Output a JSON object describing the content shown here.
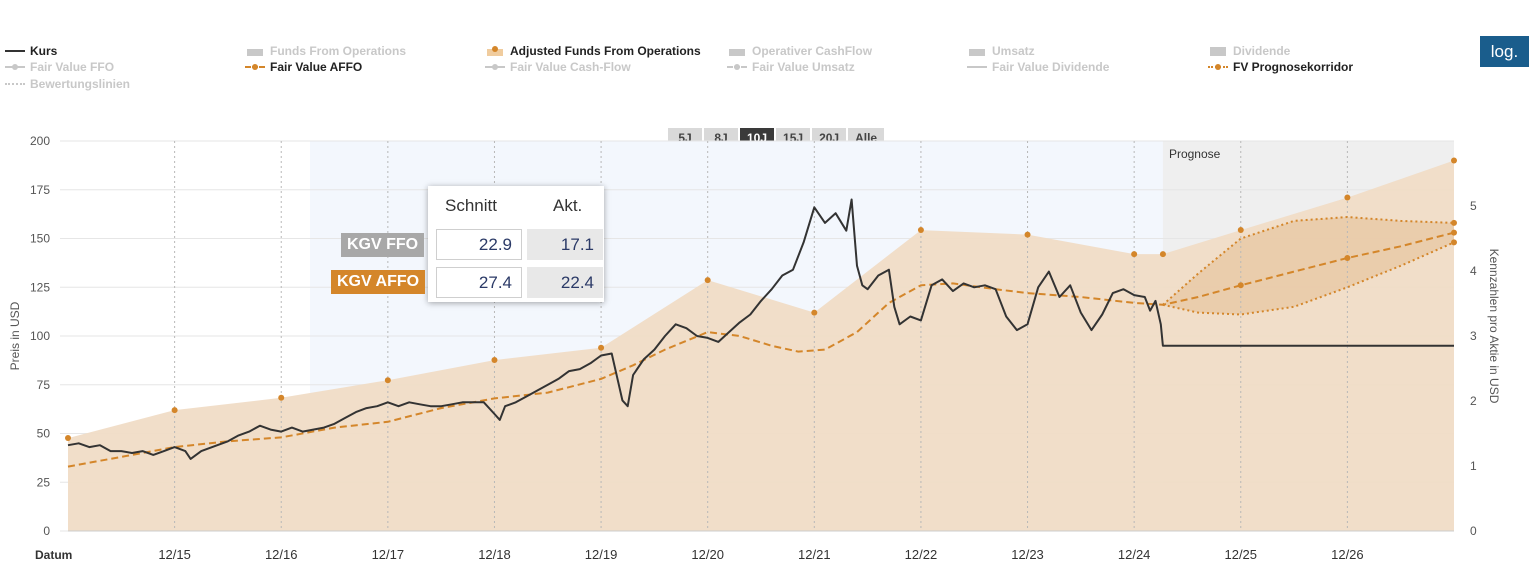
{
  "legend": [
    {
      "label": "Kurs",
      "active": true,
      "style": "line",
      "color": "#333333"
    },
    {
      "label": "Funds From Operations",
      "active": false,
      "style": "bars",
      "color": "#c8c8c8"
    },
    {
      "label": "Adjusted Funds From Operations",
      "active": true,
      "style": "bars-dots",
      "color": "#f0cc9e"
    },
    {
      "label": "Operativer CashFlow",
      "active": false,
      "style": "bars",
      "color": "#c8c8c8"
    },
    {
      "label": "Umsatz",
      "active": false,
      "style": "bars",
      "color": "#c8c8c8"
    },
    {
      "label": "Dividende",
      "active": false,
      "style": "block",
      "color": "#c8c8c8"
    },
    {
      "label": "Fair Value FFO",
      "active": false,
      "style": "line-dot",
      "color": "#c8c8c8"
    },
    {
      "label": "Fair Value AFFO",
      "active": true,
      "style": "dash-dot",
      "color": "#d4862a"
    },
    {
      "label": "Fair Value Cash-Flow",
      "active": false,
      "style": "line-dot",
      "color": "#c8c8c8"
    },
    {
      "label": "Fair Value Umsatz",
      "active": false,
      "style": "dash-dot",
      "color": "#c8c8c8"
    },
    {
      "label": "Fair Value Dividende",
      "active": false,
      "style": "line",
      "color": "#c8c8c8"
    },
    {
      "label": "FV Prognosekorridor",
      "active": true,
      "style": "dots-dot",
      "color": "#d4862a"
    },
    {
      "label": "Bewertungslinien",
      "active": false,
      "style": "dots",
      "color": "#c8c8c8"
    }
  ],
  "log_button": "log.",
  "range_buttons": [
    {
      "label": "5J",
      "active": false
    },
    {
      "label": "8J",
      "active": false
    },
    {
      "label": "10J",
      "active": true
    },
    {
      "label": "15J",
      "active": false
    },
    {
      "label": "20J",
      "active": false
    },
    {
      "label": "Alle",
      "active": false
    }
  ],
  "kgv": {
    "col_avg": "Schnitt",
    "col_cur": "Akt.",
    "rows": [
      {
        "label": "KGV FFO",
        "avg": "22.9",
        "cur": "17.1",
        "color": "#a8a8a8"
      },
      {
        "label": "KGV AFFO",
        "avg": "27.4",
        "cur": "22.4",
        "color": "#d4862a"
      }
    ]
  },
  "chart_data": {
    "type": "line",
    "xlabel": "Datum",
    "ylabel": "Preis in USD",
    "y2label": "Kennzahlen pro Aktie in USD",
    "ylim": [
      0,
      200
    ],
    "y2lim": [
      0,
      6
    ],
    "yticks": [
      0,
      25,
      50,
      75,
      100,
      125,
      150,
      175,
      200
    ],
    "y2ticks": [
      0,
      1,
      2,
      3,
      4,
      5
    ],
    "xlim": [
      2014.0,
      2027.0
    ],
    "xticks": [
      {
        "x": 2015,
        "label": "12/15"
      },
      {
        "x": 2016,
        "label": "12/16"
      },
      {
        "x": 2017,
        "label": "12/17"
      },
      {
        "x": 2018,
        "label": "12/18"
      },
      {
        "x": 2019,
        "label": "12/19"
      },
      {
        "x": 2020,
        "label": "12/20"
      },
      {
        "x": 2021,
        "label": "12/21"
      },
      {
        "x": 2022,
        "label": "12/22"
      },
      {
        "x": 2023,
        "label": "12/23"
      },
      {
        "x": 2024,
        "label": "12/24"
      },
      {
        "x": 2025,
        "label": "12/25"
      },
      {
        "x": 2026,
        "label": "12/26"
      }
    ],
    "grid": true,
    "forecast_start": 2024.27,
    "forecast_label": "Prognose",
    "series": [
      {
        "name": "Adjusted Funds From Operations",
        "role": "affo",
        "color": "#f0dcc6",
        "points": [
          [
            2014.0,
            1.43
          ],
          [
            2015.0,
            1.86
          ],
          [
            2016.0,
            2.05
          ],
          [
            2017.0,
            2.32
          ],
          [
            2018.0,
            2.63
          ],
          [
            2019.0,
            2.82
          ],
          [
            2020.0,
            3.86
          ],
          [
            2021.0,
            3.36
          ],
          [
            2022.0,
            4.63
          ],
          [
            2023.0,
            4.56
          ],
          [
            2024.0,
            4.26
          ],
          [
            2024.27,
            4.26
          ],
          [
            2025.0,
            4.63
          ],
          [
            2026.0,
            5.13
          ],
          [
            2027.0,
            5.7
          ]
        ]
      },
      {
        "name": "Fair Value AFFO",
        "role": "fv",
        "color": "#d4862a",
        "points": [
          [
            2014.0,
            33
          ],
          [
            2014.5,
            38
          ],
          [
            2015.0,
            43
          ],
          [
            2015.5,
            46
          ],
          [
            2016.0,
            48
          ],
          [
            2016.5,
            53
          ],
          [
            2017.0,
            56
          ],
          [
            2017.5,
            63
          ],
          [
            2018.0,
            68
          ],
          [
            2018.5,
            71
          ],
          [
            2019.0,
            78
          ],
          [
            2019.3,
            85
          ],
          [
            2019.6,
            93
          ],
          [
            2020.0,
            102
          ],
          [
            2020.3,
            100
          ],
          [
            2020.6,
            95
          ],
          [
            2020.85,
            92
          ],
          [
            2021.1,
            93
          ],
          [
            2021.4,
            102
          ],
          [
            2021.7,
            117
          ],
          [
            2022.0,
            126
          ],
          [
            2022.3,
            127
          ],
          [
            2022.7,
            124
          ],
          [
            2023.0,
            122
          ],
          [
            2023.5,
            120
          ],
          [
            2024.0,
            117
          ],
          [
            2024.27,
            116
          ],
          [
            2024.6,
            120
          ],
          [
            2025.0,
            126
          ],
          [
            2025.5,
            133
          ],
          [
            2026.0,
            140
          ],
          [
            2026.5,
            146
          ],
          [
            2027.0,
            153
          ]
        ]
      },
      {
        "name": "FV Prognosekorridor",
        "role": "corridor-upper",
        "color": "#d4862a",
        "points": [
          [
            2024.27,
            116
          ],
          [
            2024.6,
            132
          ],
          [
            2025.0,
            150
          ],
          [
            2025.5,
            159
          ],
          [
            2026.0,
            161
          ],
          [
            2026.5,
            159
          ],
          [
            2027.0,
            158
          ]
        ]
      },
      {
        "name": "FV Prognosekorridor",
        "role": "corridor-lower",
        "color": "#d4862a",
        "points": [
          [
            2024.27,
            116
          ],
          [
            2024.6,
            112
          ],
          [
            2025.0,
            111
          ],
          [
            2025.5,
            115
          ],
          [
            2026.0,
            125
          ],
          [
            2026.5,
            136
          ],
          [
            2027.0,
            148
          ]
        ]
      },
      {
        "name": "Kurs",
        "role": "price",
        "color": "#333333",
        "points": [
          [
            2014.0,
            44
          ],
          [
            2014.1,
            45
          ],
          [
            2014.2,
            43
          ],
          [
            2014.3,
            44
          ],
          [
            2014.4,
            41
          ],
          [
            2014.5,
            41
          ],
          [
            2014.6,
            40
          ],
          [
            2014.7,
            41
          ],
          [
            2014.8,
            39
          ],
          [
            2014.9,
            41
          ],
          [
            2015.0,
            43
          ],
          [
            2015.1,
            41
          ],
          [
            2015.15,
            37
          ],
          [
            2015.25,
            41
          ],
          [
            2015.4,
            44
          ],
          [
            2015.5,
            46
          ],
          [
            2015.6,
            49
          ],
          [
            2015.7,
            51
          ],
          [
            2015.8,
            54
          ],
          [
            2015.9,
            52
          ],
          [
            2016.0,
            51
          ],
          [
            2016.1,
            53
          ],
          [
            2016.2,
            51
          ],
          [
            2016.3,
            52
          ],
          [
            2016.4,
            53
          ],
          [
            2016.5,
            55
          ],
          [
            2016.6,
            58
          ],
          [
            2016.7,
            61
          ],
          [
            2016.8,
            63
          ],
          [
            2016.9,
            64
          ],
          [
            2017.0,
            66
          ],
          [
            2017.1,
            64
          ],
          [
            2017.2,
            66
          ],
          [
            2017.3,
            65
          ],
          [
            2017.4,
            64
          ],
          [
            2017.5,
            64
          ],
          [
            2017.6,
            65
          ],
          [
            2017.7,
            66
          ],
          [
            2017.8,
            66
          ],
          [
            2017.9,
            66
          ],
          [
            2018.0,
            60
          ],
          [
            2018.05,
            57
          ],
          [
            2018.1,
            64
          ],
          [
            2018.2,
            66
          ],
          [
            2018.3,
            69
          ],
          [
            2018.4,
            72
          ],
          [
            2018.5,
            75
          ],
          [
            2018.6,
            78
          ],
          [
            2018.7,
            82
          ],
          [
            2018.8,
            83
          ],
          [
            2018.9,
            86
          ],
          [
            2019.0,
            90
          ],
          [
            2019.1,
            91
          ],
          [
            2019.2,
            67
          ],
          [
            2019.25,
            64
          ],
          [
            2019.3,
            80
          ],
          [
            2019.4,
            88
          ],
          [
            2019.5,
            93
          ],
          [
            2019.6,
            100
          ],
          [
            2019.7,
            106
          ],
          [
            2019.8,
            104
          ],
          [
            2019.9,
            100
          ],
          [
            2020.0,
            99
          ],
          [
            2020.1,
            97
          ],
          [
            2020.2,
            102
          ],
          [
            2020.3,
            107
          ],
          [
            2020.4,
            111
          ],
          [
            2020.5,
            118
          ],
          [
            2020.6,
            124
          ],
          [
            2020.7,
            131
          ],
          [
            2020.8,
            134
          ],
          [
            2020.9,
            148
          ],
          [
            2021.0,
            166
          ],
          [
            2021.1,
            158
          ],
          [
            2021.2,
            163
          ],
          [
            2021.3,
            154
          ],
          [
            2021.35,
            170
          ],
          [
            2021.4,
            136
          ],
          [
            2021.45,
            126
          ],
          [
            2021.5,
            124
          ],
          [
            2021.6,
            131
          ],
          [
            2021.7,
            134
          ],
          [
            2021.75,
            115
          ],
          [
            2021.8,
            106
          ],
          [
            2021.9,
            110
          ],
          [
            2022.0,
            108
          ],
          [
            2022.1,
            126
          ],
          [
            2022.2,
            129
          ],
          [
            2022.3,
            123
          ],
          [
            2022.4,
            127
          ],
          [
            2022.5,
            125
          ],
          [
            2022.6,
            126
          ],
          [
            2022.7,
            124
          ],
          [
            2022.8,
            110
          ],
          [
            2022.9,
            103
          ],
          [
            2023.0,
            106
          ],
          [
            2023.1,
            125
          ],
          [
            2023.2,
            133
          ],
          [
            2023.3,
            120
          ],
          [
            2023.4,
            126
          ],
          [
            2023.5,
            112
          ],
          [
            2023.6,
            103
          ],
          [
            2023.7,
            111
          ],
          [
            2023.8,
            122
          ],
          [
            2023.9,
            124
          ],
          [
            2024.0,
            121
          ],
          [
            2024.1,
            120
          ],
          [
            2024.15,
            113
          ],
          [
            2024.2,
            118
          ],
          [
            2024.25,
            106
          ],
          [
            2024.27,
            95
          ],
          [
            2025.0,
            95
          ],
          [
            2026.0,
            95
          ],
          [
            2027.0,
            95
          ]
        ]
      }
    ]
  }
}
